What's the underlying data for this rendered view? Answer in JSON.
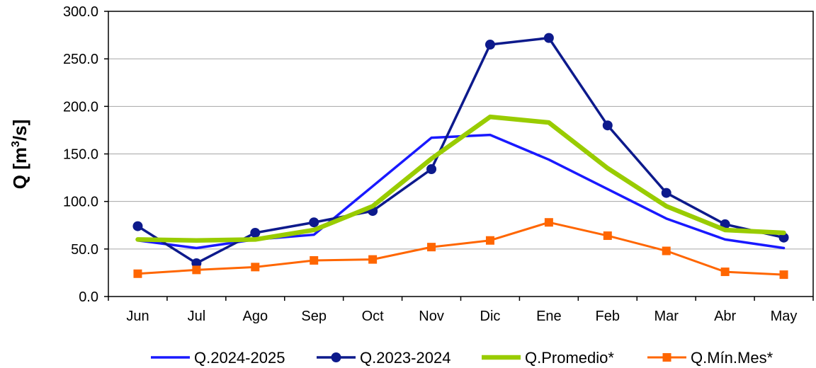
{
  "chart_data": {
    "type": "line",
    "title": "",
    "xlabel": "",
    "ylabel_main": "Q [m",
    "ylabel_sup": "3",
    "ylabel_tail": "/s]",
    "ylim": [
      0,
      300
    ],
    "ytick_step": 50,
    "ytick_labels": [
      "0.0",
      "50.0",
      "100.0",
      "150.0",
      "200.0",
      "250.0",
      "300.0"
    ],
    "categories": [
      "Jun",
      "Jul",
      "Ago",
      "Sep",
      "Oct",
      "Nov",
      "Dic",
      "Ene",
      "Feb",
      "Mar",
      "Abr",
      "May"
    ],
    "grid": true,
    "legend_position": "bottom",
    "series": [
      {
        "name": "Q.2024-2025",
        "color": "#1919ff",
        "marker": "none",
        "values": [
          59,
          51,
          60,
          65,
          116,
          167,
          170,
          144,
          113,
          82,
          60,
          51
        ]
      },
      {
        "name": "Q.2023-2024",
        "color": "#0d1a8c",
        "marker": "circle",
        "values": [
          74,
          35,
          67,
          78,
          90,
          134,
          265,
          272,
          180,
          109,
          76,
          62
        ]
      },
      {
        "name": "Q.Promedio*",
        "color": "#99cc00",
        "marker": "none",
        "values": [
          60,
          59,
          60,
          70,
          95,
          145,
          189,
          183,
          135,
          95,
          70,
          67
        ]
      },
      {
        "name": "Q.Mín.Mes*",
        "color": "#ff6600",
        "marker": "square",
        "values": [
          24,
          28,
          31,
          38,
          39,
          52,
          59,
          78,
          64,
          48,
          26,
          23
        ]
      }
    ]
  }
}
